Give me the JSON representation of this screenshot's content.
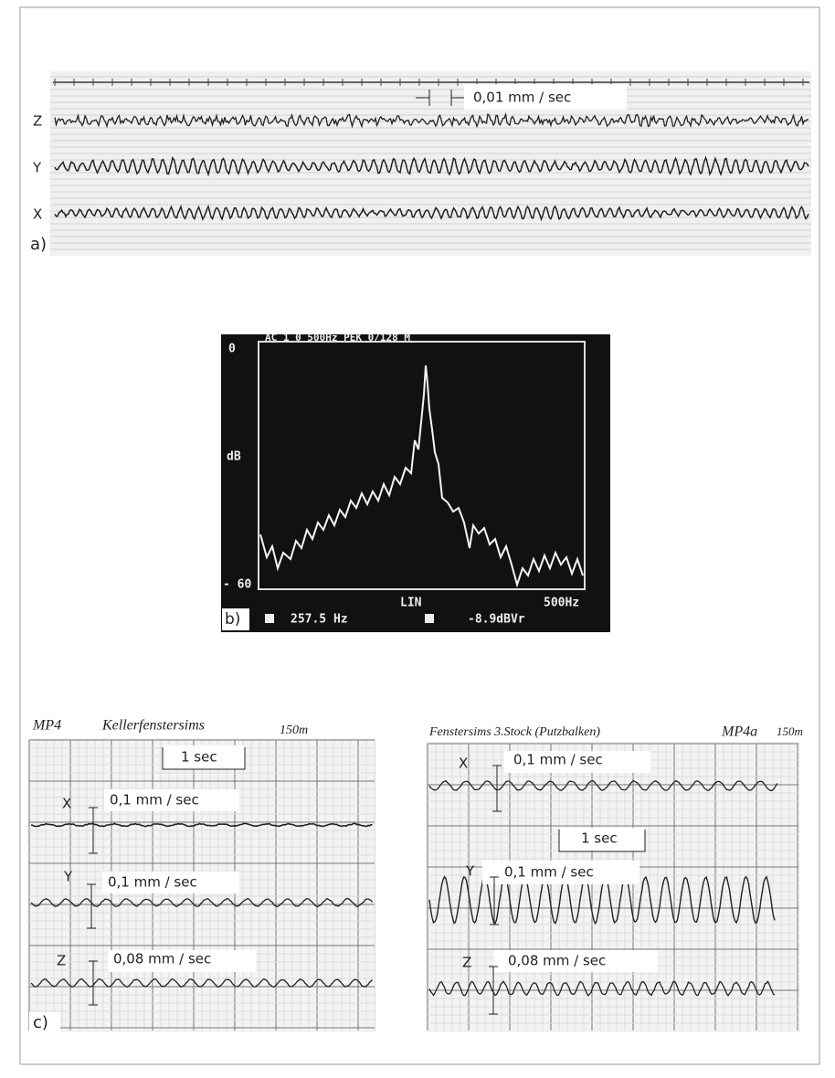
{
  "panel_a": {
    "scale": "0,01 mm / sec",
    "channels": [
      "Z",
      "Y",
      "X"
    ],
    "label": "a)"
  },
  "panel_b": {
    "header": "AC 1 0 500Hz PEK 0/128 M",
    "y_top": "0",
    "y_unit": "dB",
    "y_bottom": "- 60",
    "x_mode": "LIN",
    "x_max": "500Hz",
    "label": "b)",
    "cursor_freq": "257.5 Hz",
    "cursor_level": "-8.9dBVr"
  },
  "panel_c": {
    "label": "c)",
    "left": {
      "point": "MP4",
      "location": "Kellerfenstersims",
      "distance": "150m",
      "time_scale": "1 sec",
      "channels": [
        {
          "name": "X",
          "scale": "0,1 mm / sec"
        },
        {
          "name": "Y",
          "scale": "0,1 mm / sec"
        },
        {
          "name": "Z",
          "scale": "0,08 mm / sec"
        }
      ]
    },
    "right": {
      "point": "MP4a",
      "location": "Fenstersims 3.Stock (Putzbalken)",
      "distance": "150m",
      "time_scale": "1 sec",
      "channels": [
        {
          "name": "X",
          "scale": "0,1 mm / sec"
        },
        {
          "name": "Y",
          "scale": "0,1 mm / sec"
        },
        {
          "name": "Z",
          "scale": "0,08 mm / sec"
        }
      ]
    }
  }
}
